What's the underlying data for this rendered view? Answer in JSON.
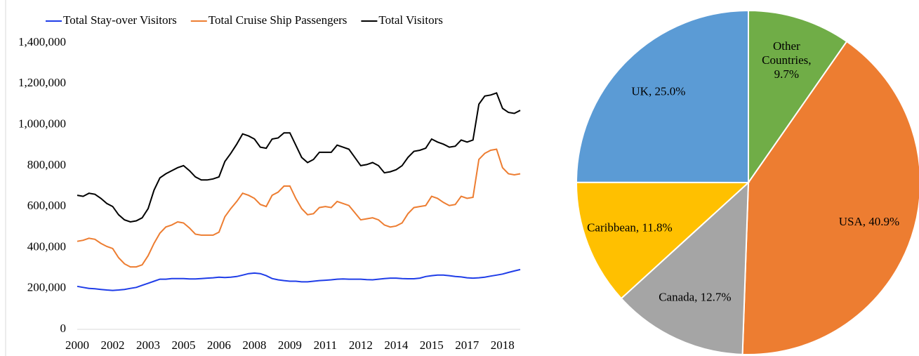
{
  "chart_data": [
    {
      "type": "line",
      "legend": "top",
      "categories": [
        "2000",
        null,
        null,
        null,
        null,
        null,
        "2002",
        null,
        null,
        null,
        null,
        null,
        "2003",
        null,
        null,
        null,
        null,
        null,
        "2005",
        null,
        null,
        null,
        null,
        null,
        "2006",
        null,
        null,
        null,
        null,
        null,
        "2008",
        null,
        null,
        null,
        null,
        null,
        "2009",
        null,
        null,
        null,
        null,
        null,
        "2011",
        null,
        null,
        null,
        null,
        null,
        "2012",
        null,
        null,
        null,
        null,
        null,
        "2014",
        null,
        null,
        null,
        null,
        null,
        "2015",
        null,
        null,
        null,
        null,
        null,
        "2017",
        null,
        null,
        null,
        null,
        null,
        "2018",
        null,
        null,
        null
      ],
      "ylim": [
        0,
        1400000
      ],
      "yticks": [
        0,
        {
          "value": 200000,
          "label": "200,000"
        },
        {
          "value": 400000,
          "label": "400,000"
        },
        {
          "value": 600000,
          "label": "600,000"
        },
        {
          "value": 800000,
          "label": "800,000"
        },
        {
          "value": 1000000,
          "label": "1,000,000"
        },
        {
          "value": 1200000,
          "label": "1,200,000"
        },
        {
          "value": 1400000,
          "label": "1,400,000"
        }
      ],
      "series": [
        {
          "name": "Total Stay-over Visitors",
          "color": "#1f3de8",
          "values": [
            210000,
            205000,
            200000,
            198000,
            195000,
            192000,
            190000,
            192000,
            195000,
            200000,
            205000,
            215000,
            225000,
            235000,
            245000,
            245000,
            248000,
            248000,
            248000,
            246000,
            246000,
            248000,
            250000,
            252000,
            255000,
            253000,
            255000,
            258000,
            265000,
            272000,
            275000,
            272000,
            262000,
            248000,
            242000,
            238000,
            235000,
            235000,
            232000,
            232000,
            235000,
            238000,
            240000,
            242000,
            245000,
            246000,
            245000,
            245000,
            245000,
            243000,
            242000,
            245000,
            248000,
            250000,
            250000,
            248000,
            247000,
            247000,
            250000,
            258000,
            262000,
            265000,
            265000,
            262000,
            258000,
            256000,
            252000,
            250000,
            252000,
            255000,
            260000,
            265000,
            270000,
            278000,
            285000,
            292000
          ]
        },
        {
          "name": "Total Cruise Ship Passengers",
          "color": "#ed7d31",
          "values": [
            430000,
            435000,
            445000,
            440000,
            420000,
            405000,
            395000,
            350000,
            320000,
            305000,
            305000,
            315000,
            360000,
            420000,
            470000,
            500000,
            510000,
            525000,
            520000,
            495000,
            465000,
            460000,
            460000,
            460000,
            475000,
            550000,
            590000,
            625000,
            665000,
            655000,
            640000,
            610000,
            600000,
            655000,
            670000,
            700000,
            700000,
            640000,
            590000,
            560000,
            565000,
            595000,
            600000,
            595000,
            625000,
            615000,
            605000,
            570000,
            535000,
            540000,
            545000,
            535000,
            510000,
            500000,
            505000,
            520000,
            565000,
            595000,
            600000,
            605000,
            650000,
            640000,
            620000,
            605000,
            610000,
            650000,
            640000,
            645000,
            830000,
            860000,
            875000,
            880000,
            790000,
            760000,
            755000,
            760000
          ]
        },
        {
          "name": "Total Visitors",
          "color": "#000000",
          "values": [
            655000,
            650000,
            665000,
            660000,
            640000,
            615000,
            600000,
            560000,
            535000,
            525000,
            530000,
            545000,
            590000,
            680000,
            740000,
            760000,
            775000,
            790000,
            800000,
            775000,
            745000,
            730000,
            730000,
            735000,
            745000,
            820000,
            860000,
            905000,
            955000,
            945000,
            930000,
            890000,
            885000,
            930000,
            935000,
            960000,
            960000,
            900000,
            840000,
            815000,
            830000,
            865000,
            865000,
            865000,
            900000,
            890000,
            880000,
            840000,
            800000,
            805000,
            815000,
            800000,
            765000,
            770000,
            780000,
            800000,
            840000,
            870000,
            875000,
            885000,
            930000,
            915000,
            905000,
            890000,
            895000,
            925000,
            915000,
            925000,
            1100000,
            1140000,
            1145000,
            1155000,
            1080000,
            1060000,
            1055000,
            1070000
          ]
        }
      ]
    },
    {
      "type": "pie",
      "values": [
        9.7,
        40.9,
        12.7,
        11.8,
        25.0
      ],
      "value_labels": [
        "Other Countries, 9.7%",
        "USA, 40.9%",
        "Canada, 12.7%",
        "Caribbean, 11.8%",
        "UK, 25.0%"
      ],
      "colors": [
        "#70ad47",
        "#ed7d31",
        "#a5a5a5",
        "#ffc000",
        "#5b9bd5"
      ]
    }
  ]
}
